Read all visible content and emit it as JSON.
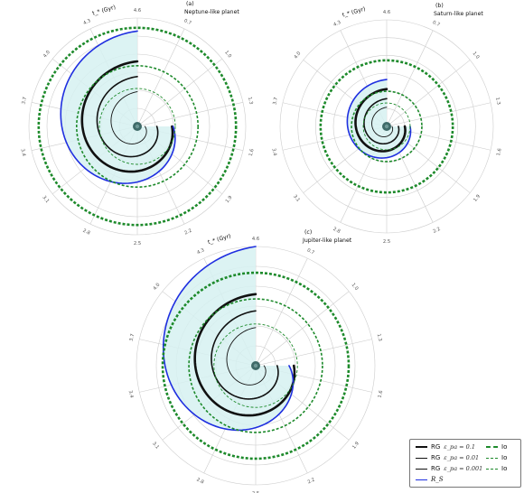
{
  "chart_data": [
    {
      "type": "polar",
      "panel_letter": "(a)",
      "title": "Neptune-like planet",
      "theta_label": "t_* (Gyr)",
      "theta_ticks": [
        "4.6",
        "0.7",
        "1.0",
        "1.3",
        "1.6",
        "1.9",
        "2.2",
        "2.5",
        "2.8",
        "3.1",
        "3.4",
        "3.7",
        "4.0",
        "4.3"
      ],
      "series": [
        {
          "legend_ref": 0,
          "r_start": 0.6,
          "r_end": 0.32
        },
        {
          "legend_ref": 1,
          "r_start": 0.46,
          "r_end": 0.18
        },
        {
          "legend_ref": 2,
          "r_start": 0.32,
          "r_end": 0.07
        },
        {
          "legend_ref": 3,
          "r_start": 0.88,
          "r_end": 0.33
        },
        {
          "legend_ref": 4,
          "r": 0.91
        },
        {
          "legend_ref": 5,
          "r": 0.56
        },
        {
          "legend_ref": 6,
          "r": 0.35
        }
      ]
    },
    {
      "type": "polar",
      "panel_letter": "(b)",
      "title": "Saturn-like planet",
      "theta_label": "t_* (Gyr)",
      "theta_ticks": [
        "4.6",
        "0.7",
        "1.0",
        "1.3",
        "1.6",
        "1.9",
        "2.2",
        "2.5",
        "2.8",
        "3.1",
        "3.4",
        "3.7",
        "4.0",
        "4.3"
      ],
      "series": [
        {
          "legend_ref": 0,
          "r_start": 0.35,
          "r_end": 0.17
        },
        {
          "legend_ref": 1,
          "r_start": 0.26,
          "r_end": 0.11
        },
        {
          "legend_ref": 2,
          "r_start": 0.18,
          "r_end": 0.05
        },
        {
          "legend_ref": 3,
          "r_start": 0.44,
          "r_end": 0.22
        },
        {
          "legend_ref": 4,
          "r": 0.62
        },
        {
          "legend_ref": 5,
          "r": 0.33
        },
        {
          "legend_ref": 6,
          "r": 0.22
        }
      ]
    },
    {
      "type": "polar",
      "panel_letter": "(c)",
      "title": "Jupiter-like planet",
      "theta_label": "t_* (Gyr)",
      "theta_ticks": [
        "4.6",
        "0.7",
        "1.0",
        "1.3",
        "1.6",
        "1.9",
        "2.2",
        "2.5",
        "2.8",
        "3.1",
        "3.4",
        "3.7",
        "4.0",
        "4.3"
      ],
      "series": [
        {
          "legend_ref": 0,
          "r_start": 0.6,
          "r_end": 0.32
        },
        {
          "legend_ref": 1,
          "r_start": 0.46,
          "r_end": 0.18
        },
        {
          "legend_ref": 2,
          "r_start": 0.32,
          "r_end": 0.07
        },
        {
          "legend_ref": 3,
          "r_start": 1.0,
          "r_end": 0.28
        },
        {
          "legend_ref": 4,
          "r": 0.78
        },
        {
          "legend_ref": 5,
          "r": 0.56
        },
        {
          "legend_ref": 6,
          "r": 0.35
        }
      ]
    }
  ],
  "legend": [
    {
      "label": "RG",
      "sub": "ε_pa = 0.1",
      "color": "#111111",
      "style": "solid",
      "weight": "thick"
    },
    {
      "label": "RG",
      "sub": "ε_pa = 0.01",
      "color": "#111111",
      "style": "solid",
      "weight": "medium"
    },
    {
      "label": "RG",
      "sub": "ε_pa = 0.001",
      "color": "#111111",
      "style": "solid",
      "weight": "thin"
    },
    {
      "label": "R_S",
      "sub": "",
      "color": "#1f2fe0",
      "style": "solid",
      "weight": "medium"
    },
    {
      "label": "Io",
      "sub": "",
      "color": "#1d8a2b",
      "style": "dashed",
      "weight": "thick"
    },
    {
      "label": "Io",
      "sub": "",
      "color": "#1d8a2b",
      "style": "dashed",
      "weight": "medium"
    },
    {
      "label": "Io",
      "sub": "",
      "color": "#1d8a2b",
      "style": "dashed",
      "weight": "thin"
    }
  ],
  "colors": {
    "rg": "#111111",
    "rs": "#1f2fe0",
    "io": "#1d8a2b",
    "fill": "#d6f1f1",
    "grid": "#cccccc",
    "planet": "#3f6a68"
  }
}
